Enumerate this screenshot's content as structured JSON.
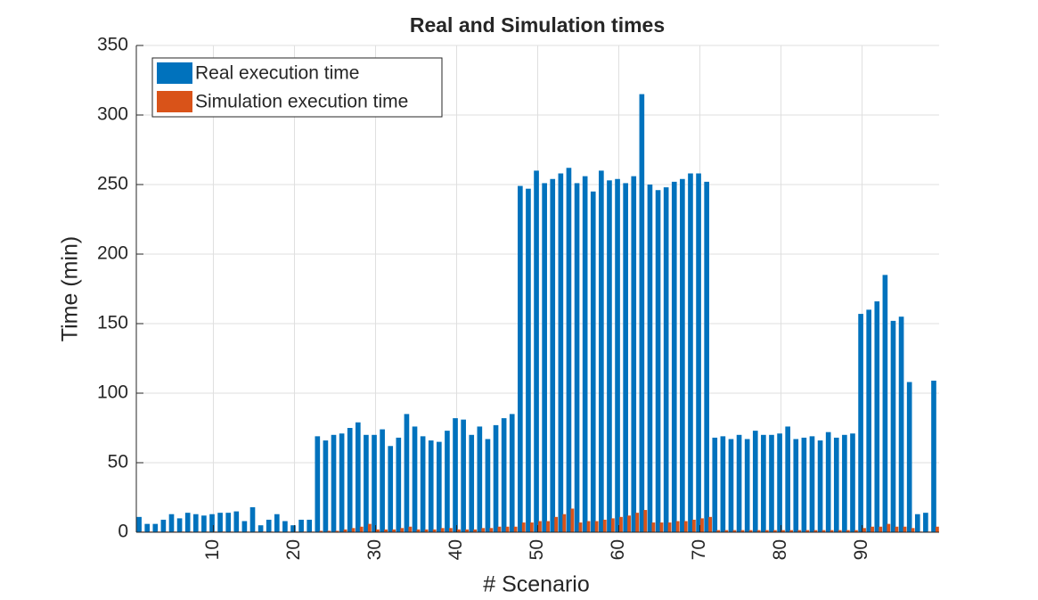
{
  "chart_data": {
    "type": "bar",
    "title": "Real and Simulation times",
    "xlabel": "# Scenario",
    "ylabel": "Time (min)",
    "x": [
      1,
      2,
      3,
      4,
      5,
      6,
      7,
      8,
      9,
      10,
      11,
      12,
      13,
      14,
      15,
      16,
      17,
      18,
      19,
      20,
      21,
      22,
      23,
      24,
      25,
      26,
      27,
      28,
      29,
      30,
      31,
      32,
      33,
      34,
      35,
      36,
      37,
      38,
      39,
      40,
      41,
      42,
      43,
      44,
      45,
      46,
      47,
      48,
      49,
      50,
      51,
      52,
      53,
      54,
      55,
      56,
      57,
      58,
      59,
      60,
      61,
      62,
      63,
      64,
      65,
      66,
      67,
      68,
      69,
      70,
      71,
      72,
      73,
      74,
      75,
      76,
      77,
      78,
      79,
      80,
      81,
      82,
      83,
      84,
      85,
      86,
      87,
      88,
      89,
      90,
      91,
      92,
      93,
      94,
      95,
      96,
      97,
      98,
      99
    ],
    "series": [
      {
        "name": "Real execution time",
        "color": "#0072BD",
        "values": [
          11,
          6,
          6,
          9,
          13,
          10,
          14,
          13,
          12,
          13,
          14,
          14,
          15,
          8,
          18,
          5,
          9,
          13,
          8,
          5,
          9,
          9,
          69,
          66,
          70,
          71,
          75,
          79,
          70,
          70,
          74,
          62,
          68,
          85,
          76,
          69,
          66,
          65,
          73,
          82,
          81,
          70,
          76,
          67,
          77,
          82,
          85,
          249,
          247,
          260,
          251,
          254,
          258,
          262,
          251,
          256,
          245,
          260,
          253,
          254,
          251,
          256,
          315,
          250,
          246,
          248,
          252,
          254,
          258,
          258,
          252,
          68,
          69,
          67,
          70,
          67,
          73,
          70,
          70,
          71,
          76,
          67,
          68,
          69,
          66,
          72,
          68,
          70,
          71,
          157,
          160,
          166,
          185,
          152,
          155,
          108,
          13,
          14,
          109
        ]
      },
      {
        "name": "Simulation execution time",
        "color": "#D95319",
        "values": [
          0.5,
          0.5,
          0.5,
          0.5,
          0.5,
          0.5,
          0.5,
          0.5,
          0.5,
          0.5,
          0.5,
          0.5,
          0.5,
          0.5,
          0.5,
          0.5,
          0.5,
          0.5,
          0.5,
          0.5,
          0.5,
          0.5,
          1,
          1,
          1,
          2,
          3,
          4,
          6,
          2,
          2,
          2,
          3,
          4,
          2,
          2,
          2,
          3,
          3,
          2,
          2,
          2,
          3,
          3,
          4,
          4,
          4,
          7,
          7,
          8,
          8,
          11,
          13,
          17,
          7,
          8,
          8,
          9,
          10,
          11,
          12,
          14,
          16,
          7,
          7,
          7,
          8,
          8,
          9,
          10,
          11,
          1.5,
          1.5,
          1.5,
          1.5,
          1.5,
          1.5,
          1.5,
          1.5,
          1.5,
          1.5,
          1.5,
          1.5,
          1.5,
          1.5,
          1.5,
          1.5,
          1.5,
          1.5,
          3,
          4,
          4,
          6,
          4,
          4,
          3,
          0.5,
          0.5,
          4
        ]
      }
    ],
    "xlim": [
      0.5,
      99.5
    ],
    "xticks": [
      10,
      20,
      30,
      40,
      50,
      60,
      70,
      80,
      90
    ],
    "ylim": [
      0,
      350
    ],
    "yticks": [
      0,
      50,
      100,
      150,
      200,
      250,
      300,
      350
    ],
    "grid": true,
    "legend": "upper-left"
  }
}
